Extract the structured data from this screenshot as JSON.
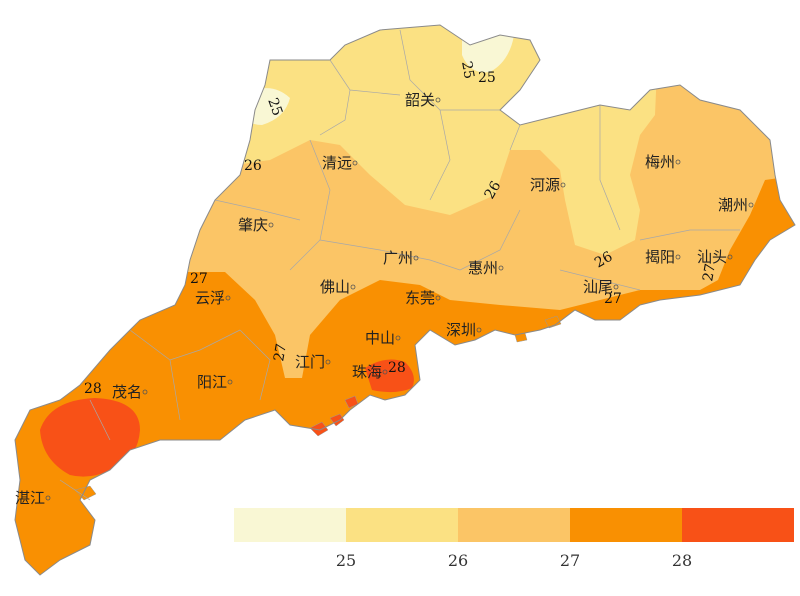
{
  "colors": {
    "lt25": "#f9f7d4",
    "c25_26": "#fbe183",
    "c26_27": "#fbc566",
    "c27_28": "#f99002",
    "gt28": "#f85117",
    "border": "#9a9a9a"
  },
  "cities": [
    {
      "name": "韶关"
    },
    {
      "name": "清远"
    },
    {
      "name": "河源"
    },
    {
      "name": "梅州"
    },
    {
      "name": "潮州"
    },
    {
      "name": "肇庆"
    },
    {
      "name": "广州"
    },
    {
      "name": "惠州"
    },
    {
      "name": "揭阳"
    },
    {
      "name": "汕头"
    },
    {
      "name": "云浮"
    },
    {
      "name": "佛山"
    },
    {
      "name": "东莞"
    },
    {
      "name": "汕尾"
    },
    {
      "name": "深圳"
    },
    {
      "name": "中山"
    },
    {
      "name": "江门"
    },
    {
      "name": "珠海"
    },
    {
      "name": "阳江"
    },
    {
      "name": "茂名"
    },
    {
      "name": "湛江"
    }
  ],
  "contour_labels": [
    "25",
    "25",
    "25",
    "26",
    "26",
    "26",
    "27",
    "27",
    "27",
    "27",
    "28",
    "28"
  ],
  "legend": {
    "ticks": [
      "25",
      "26",
      "27",
      "28"
    ]
  }
}
